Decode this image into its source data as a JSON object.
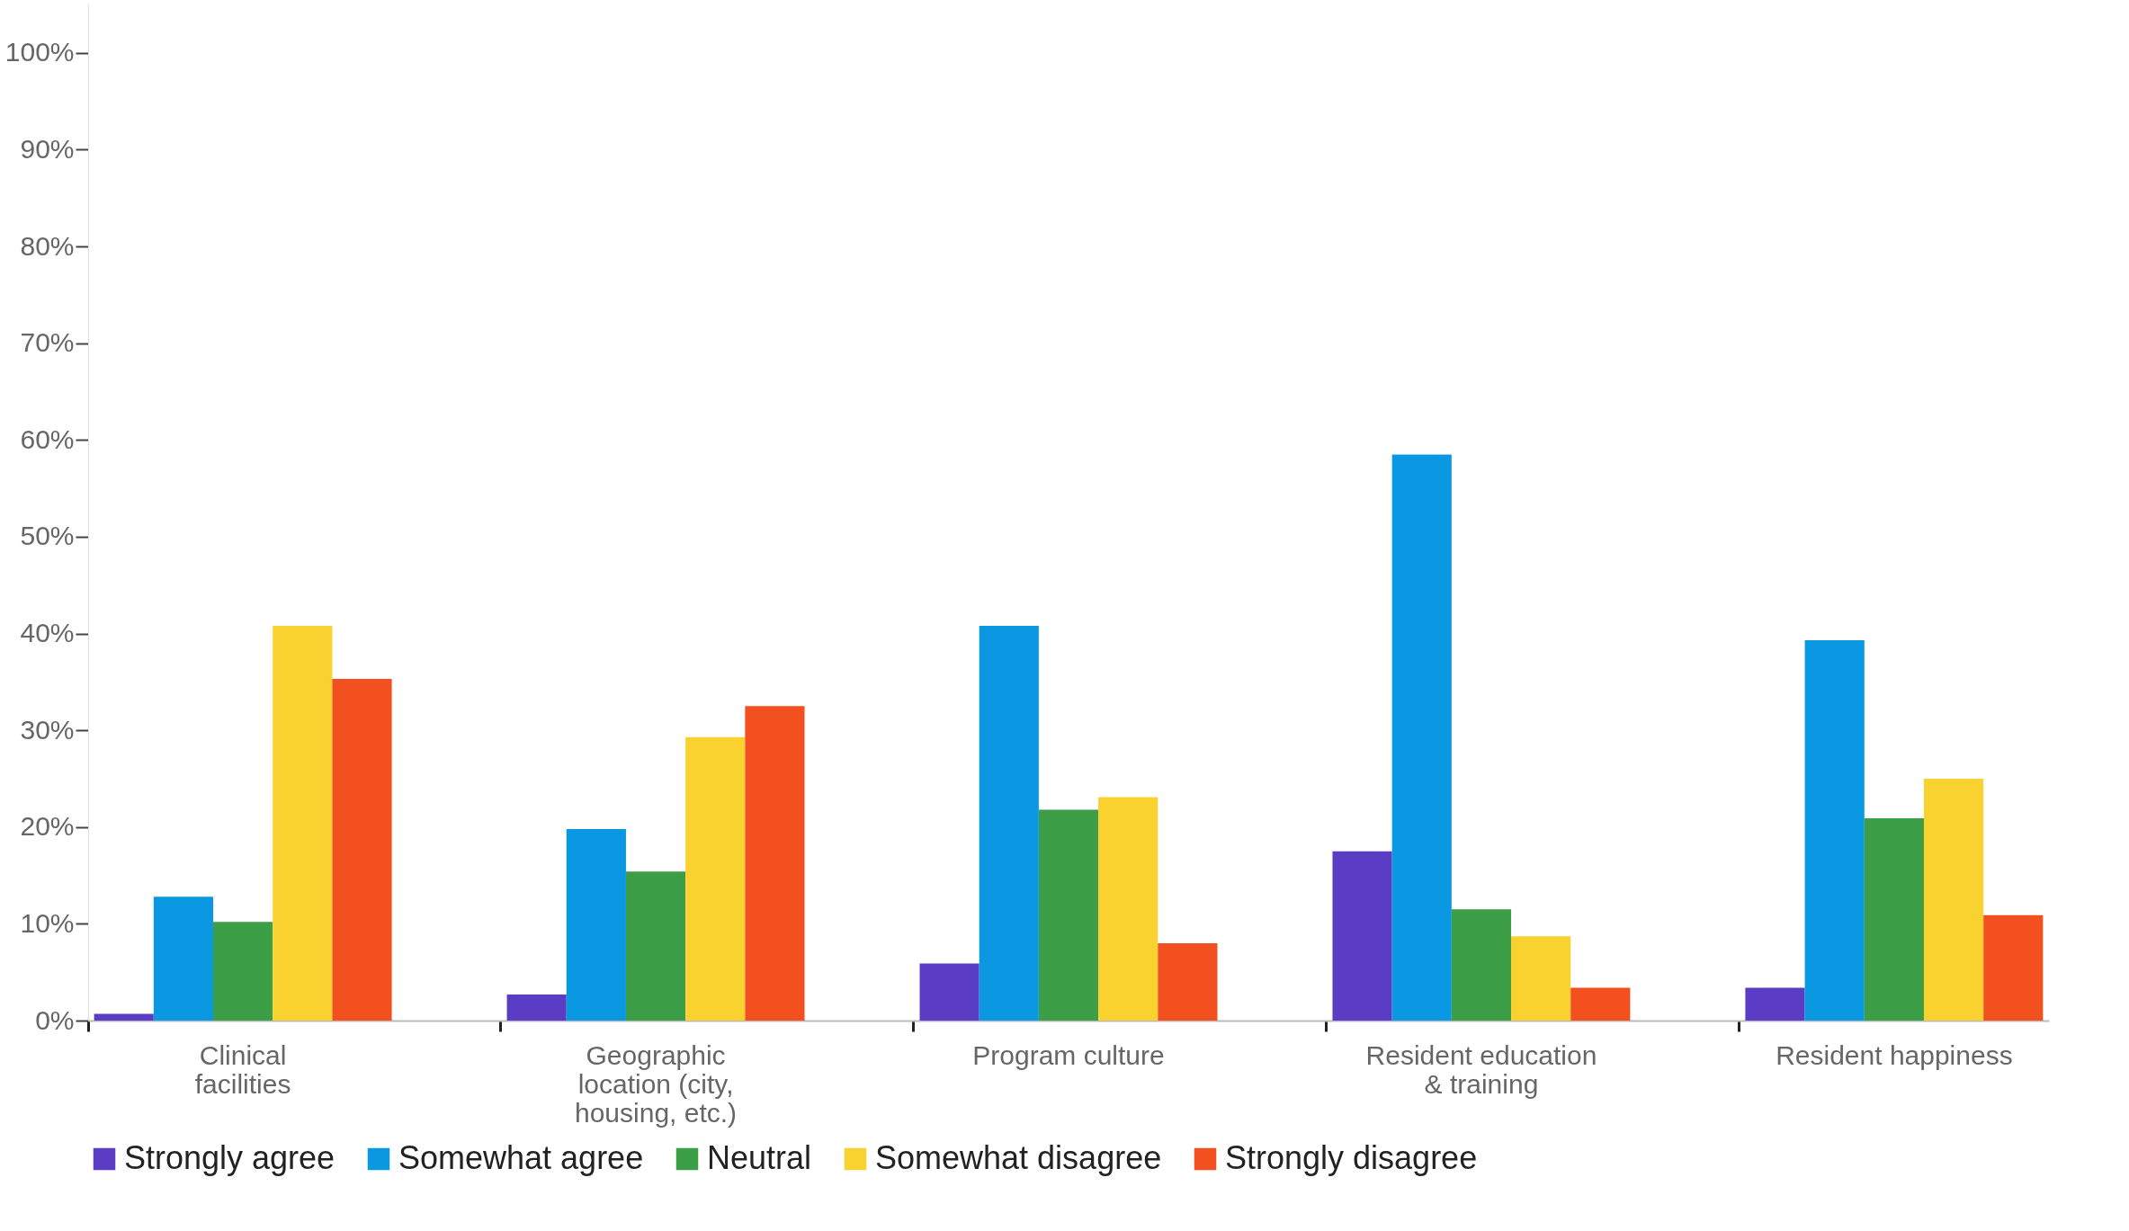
{
  "chart_data": {
    "type": "bar",
    "categories": [
      "Clinical facilities",
      "Geographic location (city, housing, etc.)",
      "Program culture",
      "Resident education & training",
      "Resident happiness"
    ],
    "series": [
      {
        "name": "Strongly agree",
        "color": "#5b3cc4",
        "values": [
          0.7,
          2.7,
          5.9,
          17.5,
          3.4
        ]
      },
      {
        "name": "Somewhat agree",
        "color": "#0b98e2",
        "values": [
          12.8,
          19.8,
          40.8,
          58.5,
          39.3
        ]
      },
      {
        "name": "Neutral",
        "color": "#3c9e47",
        "values": [
          10.2,
          15.4,
          21.8,
          11.5,
          20.9
        ]
      },
      {
        "name": "Somewhat disagree",
        "color": "#fad22f",
        "values": [
          40.8,
          29.3,
          23.1,
          8.7,
          25.0
        ]
      },
      {
        "name": "Strongly disagree",
        "color": "#f2511f",
        "values": [
          35.3,
          32.5,
          8.0,
          3.4,
          10.9
        ]
      }
    ],
    "ylim": [
      0,
      105
    ],
    "yticks": [
      {
        "value": 0,
        "label": "0%"
      },
      {
        "value": 10,
        "label": "10%"
      },
      {
        "value": 20,
        "label": "20%"
      },
      {
        "value": 30,
        "label": "30%"
      },
      {
        "value": 40,
        "label": "40%"
      },
      {
        "value": 50,
        "label": "50%"
      },
      {
        "value": 60,
        "label": "60%"
      },
      {
        "value": 70,
        "label": "70%"
      },
      {
        "value": 80,
        "label": "80%"
      },
      {
        "value": 90,
        "label": "90%"
      },
      {
        "value": 100,
        "label": "100%"
      }
    ],
    "grid": false,
    "legend": "bottom"
  }
}
